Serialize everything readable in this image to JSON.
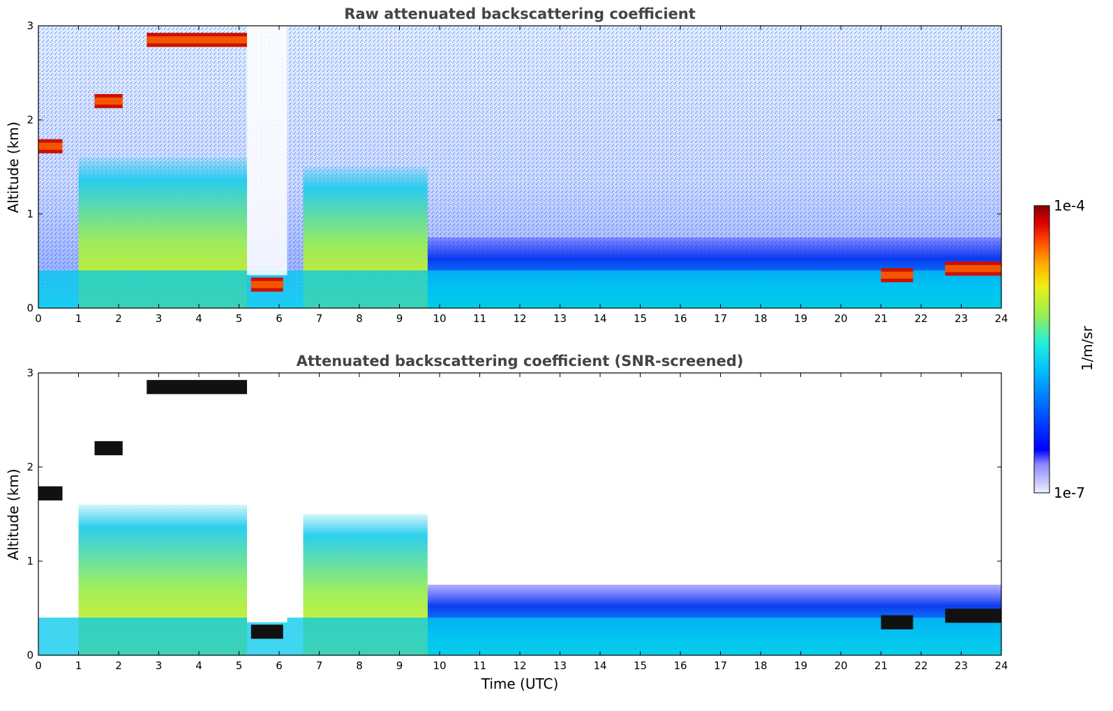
{
  "chart_data": [
    {
      "type": "heatmap",
      "title": "Raw attenuated backscattering coefficient",
      "xlabel": "",
      "ylabel": "Altitude (km)",
      "xlim": [
        0,
        24
      ],
      "ylim": [
        0,
        3
      ],
      "xticks": [
        "0",
        "1",
        "2",
        "3",
        "4",
        "5",
        "6",
        "7",
        "8",
        "9",
        "10",
        "11",
        "12",
        "13",
        "14",
        "15",
        "16",
        "17",
        "18",
        "19",
        "20",
        "21",
        "22",
        "23",
        "24"
      ],
      "yticks": [
        "0",
        "1",
        "2",
        "3"
      ],
      "grid": false,
      "features": [
        {
          "feature": "boundary layer aerosol",
          "t_start": 0,
          "t_end": 24,
          "alt_top_km": 0.4
        },
        {
          "feature": "dense aerosol layer",
          "t_start": 1,
          "t_end": 5.2,
          "alt_top_km": 1.6
        },
        {
          "feature": "clear gap",
          "t_start": 5.2,
          "t_end": 6.2,
          "alt_top_km": 0.35
        },
        {
          "feature": "dense aerosol layer",
          "t_start": 6.6,
          "t_end": 9.7,
          "alt_top_km": 1.5
        },
        {
          "feature": "residual layer",
          "t_start": 9.7,
          "t_end": 24,
          "alt_top_km": 0.75
        },
        {
          "feature": "cloud",
          "t_start": 2.7,
          "t_end": 5.2,
          "alt_km": 2.85
        },
        {
          "feature": "cloud",
          "t_start": 0,
          "t_end": 0.6,
          "alt_km": 1.72
        },
        {
          "feature": "cloud",
          "t_start": 1.4,
          "t_end": 2.1,
          "alt_km": 2.2
        },
        {
          "feature": "cloud",
          "t_start": 5.3,
          "t_end": 6.1,
          "alt_km": 0.25
        },
        {
          "feature": "cloud",
          "t_start": 21.0,
          "t_end": 21.8,
          "alt_km": 0.35
        },
        {
          "feature": "cloud",
          "t_start": 22.6,
          "t_end": 24,
          "alt_km": 0.42
        }
      ]
    },
    {
      "type": "heatmap",
      "title": "Attenuated backscattering coefficient (SNR-screened)",
      "xlabel": "Time (UTC)",
      "ylabel": "Altitude (km)",
      "xlim": [
        0,
        24
      ],
      "ylim": [
        0,
        3
      ],
      "xticks": [
        "0",
        "1",
        "2",
        "3",
        "4",
        "5",
        "6",
        "7",
        "8",
        "9",
        "10",
        "11",
        "12",
        "13",
        "14",
        "15",
        "16",
        "17",
        "18",
        "19",
        "20",
        "21",
        "22",
        "23",
        "24"
      ],
      "yticks": [
        "0",
        "1",
        "2",
        "3"
      ],
      "grid": false
    }
  ],
  "colorbar": {
    "label": "1/m/sr",
    "max_label": "1e-4",
    "min_label": "1e-7",
    "colors": [
      "#eeeeff",
      "#bbbbff",
      "#8888ff",
      "#0000ff",
      "#0066ff",
      "#00bbff",
      "#22eedd",
      "#99ee55",
      "#eeee11",
      "#ffaa00",
      "#ff4400",
      "#dd0000",
      "#880000"
    ]
  }
}
